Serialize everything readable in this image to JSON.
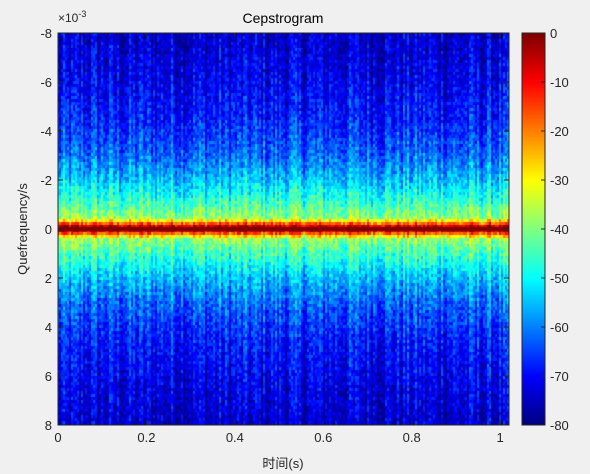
{
  "figure_background": "#f0f0f0",
  "chart_data": {
    "type": "heatmap",
    "title": "Cepstrogram",
    "xlabel": "时间(s)",
    "ylabel": "Quefrequency/s",
    "y_exponent_label": "×10",
    "y_exponent_power": "-3",
    "xlim": [
      0,
      1.02
    ],
    "ylim": [
      -8,
      8
    ],
    "y_direction": "reverse",
    "x_ticks": [
      0,
      0.2,
      0.4,
      0.6,
      0.8,
      1
    ],
    "x_tick_labels": [
      "0",
      "0.2",
      "0.4",
      "0.6",
      "0.8",
      "1"
    ],
    "y_ticks": [
      -8,
      -6,
      -4,
      -2,
      0,
      2,
      4,
      6,
      8
    ],
    "y_tick_labels": [
      "-8",
      "-6",
      "-4",
      "-2",
      "0",
      "2",
      "4",
      "6",
      "8"
    ],
    "color_limits": [
      -80,
      0
    ],
    "colormap": "jet",
    "colorbar_ticks": [
      0,
      -10,
      -20,
      -30,
      -40,
      -50,
      -60,
      -70,
      -80
    ],
    "colorbar_tick_labels": [
      "0",
      "-10",
      "-20",
      "-30",
      "-40",
      "-50",
      "-60",
      "-70",
      "-80"
    ],
    "level_profile_db": [
      {
        "quefrency_ms": 0,
        "level": 0
      },
      {
        "quefrency_ms": 0.4,
        "level": -38
      },
      {
        "quefrency_ms": 1.0,
        "level": -45
      },
      {
        "quefrency_ms": 2.0,
        "level": -55
      },
      {
        "quefrency_ms": 3.0,
        "level": -62
      },
      {
        "quefrency_ms": 4.5,
        "level": -68
      },
      {
        "quefrency_ms": 6.5,
        "level": -72
      },
      {
        "quefrency_ms": 8.0,
        "level": -74
      }
    ]
  }
}
